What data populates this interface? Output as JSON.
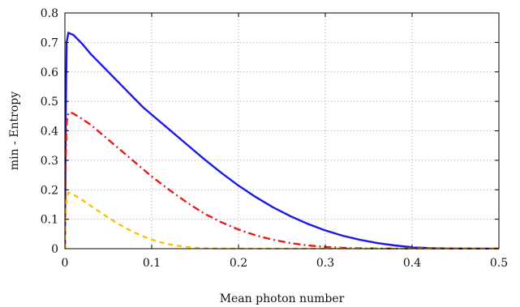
{
  "chart_data": {
    "type": "line",
    "title": "",
    "xlabel": "Mean photon number",
    "ylabel": "min - Entropy",
    "xlim": [
      0,
      0.5
    ],
    "ylim": [
      0,
      0.8
    ],
    "xticks": [
      0,
      0.1,
      0.2,
      0.3,
      0.4,
      0.5
    ],
    "xtick_labels": [
      "0",
      "0.1",
      "0.2",
      "0.3",
      "0.4",
      "0.5"
    ],
    "yticks": [
      0,
      0.1,
      0.2,
      0.3,
      0.4,
      0.5,
      0.6,
      0.7,
      0.8
    ],
    "ytick_labels": [
      "0",
      "0.1",
      "0.2",
      "0.3",
      "0.4",
      "0.5",
      "0.6",
      "0.7",
      "0.8"
    ],
    "grid": true,
    "legend": "none",
    "series": [
      {
        "color": "#1a1ae6",
        "style": "solid",
        "x": [
          0,
          0.001,
          0.002,
          0.004,
          0.006,
          0.01,
          0.015,
          0.02,
          0.03,
          0.04,
          0.05,
          0.06,
          0.07,
          0.08,
          0.09,
          0.1,
          0.12,
          0.14,
          0.16,
          0.18,
          0.2,
          0.22,
          0.24,
          0.26,
          0.28,
          0.3,
          0.32,
          0.34,
          0.36,
          0.38,
          0.4,
          0.42,
          0.44,
          0.46,
          0.48,
          0.5
        ],
        "y": [
          0,
          0.45,
          0.7,
          0.733,
          0.73,
          0.725,
          0.71,
          0.695,
          0.66,
          0.63,
          0.6,
          0.57,
          0.54,
          0.51,
          0.48,
          0.455,
          0.405,
          0.355,
          0.305,
          0.258,
          0.214,
          0.175,
          0.14,
          0.11,
          0.084,
          0.062,
          0.044,
          0.03,
          0.019,
          0.011,
          0.005,
          0.002,
          0.001,
          0.0005,
          0.0002,
          0.0001
        ]
      },
      {
        "color": "#e81a1a",
        "style": "dashdot",
        "x": [
          0,
          0.001,
          0.002,
          0.004,
          0.007,
          0.01,
          0.02,
          0.03,
          0.04,
          0.05,
          0.06,
          0.07,
          0.08,
          0.09,
          0.1,
          0.12,
          0.14,
          0.16,
          0.18,
          0.2,
          0.22,
          0.24,
          0.26,
          0.28,
          0.3,
          0.32,
          0.34,
          0.36,
          0.38,
          0.4,
          0.45,
          0.5
        ],
        "y": [
          0,
          0.3,
          0.43,
          0.46,
          0.462,
          0.458,
          0.44,
          0.42,
          0.395,
          0.37,
          0.345,
          0.32,
          0.295,
          0.27,
          0.245,
          0.2,
          0.158,
          0.12,
          0.09,
          0.065,
          0.045,
          0.03,
          0.019,
          0.011,
          0.006,
          0.003,
          0.0015,
          0.0007,
          0.0003,
          0.0001,
          0,
          0
        ]
      },
      {
        "color": "#f5c400",
        "style": "dashed",
        "x": [
          0,
          0.001,
          0.002,
          0.004,
          0.007,
          0.01,
          0.02,
          0.03,
          0.04,
          0.05,
          0.06,
          0.07,
          0.08,
          0.09,
          0.1,
          0.11,
          0.12,
          0.13,
          0.14,
          0.15,
          0.16,
          0.18,
          0.2,
          0.25,
          0.3,
          0.4,
          0.5
        ],
        "y": [
          0,
          0.12,
          0.175,
          0.19,
          0.188,
          0.183,
          0.165,
          0.145,
          0.125,
          0.105,
          0.087,
          0.07,
          0.055,
          0.042,
          0.031,
          0.022,
          0.015,
          0.01,
          0.006,
          0.003,
          0.0015,
          0.0004,
          0.0001,
          0,
          0,
          0,
          0
        ]
      }
    ]
  }
}
